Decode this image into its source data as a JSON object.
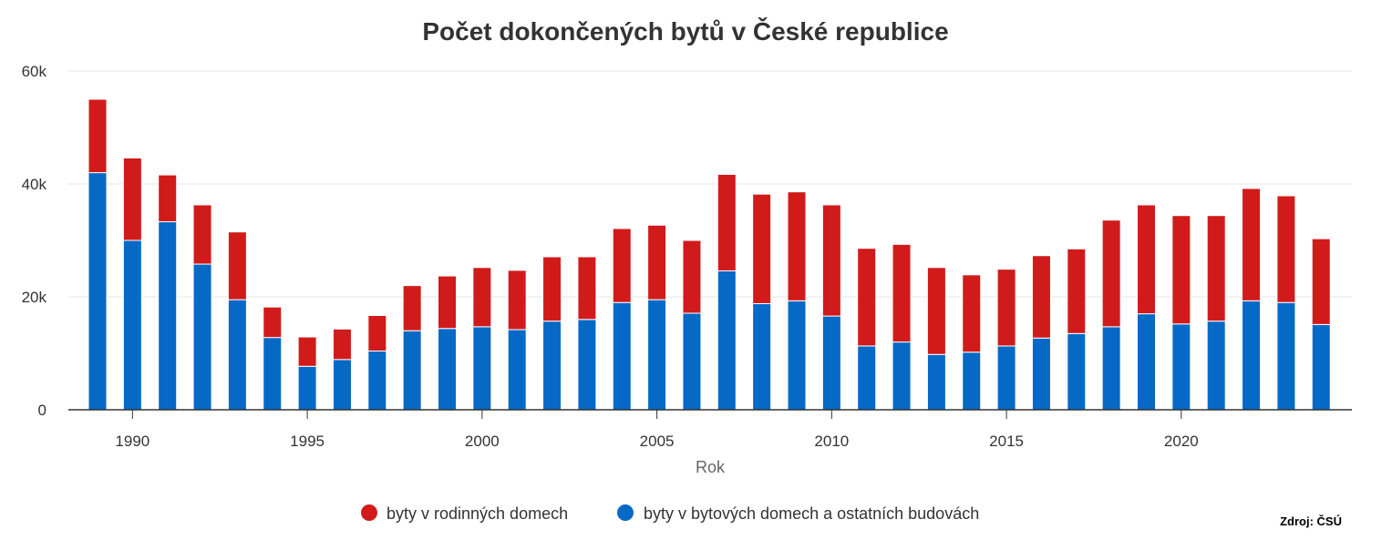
{
  "chart_data": {
    "type": "bar",
    "stacked": true,
    "title": "Počet dokončených bytů v České republice",
    "xlabel": "Rok",
    "ylabel": "",
    "ylim": [
      0,
      60000
    ],
    "yticks": [
      0,
      20000,
      40000,
      60000
    ],
    "ytick_labels": [
      "0",
      "20k",
      "40k",
      "60k"
    ],
    "xticks": [
      1990,
      1995,
      2000,
      2005,
      2010,
      2015,
      2020
    ],
    "xtick_labels": [
      "1990",
      "1995",
      "2000",
      "2005",
      "2010",
      "2015",
      "2020"
    ],
    "x": [
      1989,
      1990,
      1991,
      1992,
      1993,
      1994,
      1995,
      1996,
      1997,
      1998,
      1999,
      2000,
      2001,
      2002,
      2003,
      2004,
      2005,
      2006,
      2007,
      2008,
      2009,
      2010,
      2011,
      2012,
      2013,
      2014,
      2015,
      2016,
      2017,
      2018,
      2019,
      2020,
      2021,
      2022,
      2023,
      2024
    ],
    "series": [
      {
        "name": "byty v bytových domech a ostatních budovách",
        "color": "#0669c6",
        "values": [
          42000,
          30000,
          33300,
          25800,
          19500,
          12800,
          7700,
          8900,
          10400,
          14000,
          14400,
          14700,
          14200,
          15700,
          16000,
          19000,
          19500,
          17100,
          24600,
          18800,
          19300,
          16600,
          11300,
          12000,
          9800,
          10200,
          11300,
          12700,
          13500,
          14700,
          17000,
          15200,
          15700,
          19300,
          19000,
          15100
        ]
      },
      {
        "name": "byty v rodinných domech",
        "color": "#d11b1b",
        "values": [
          13000,
          14600,
          8300,
          10500,
          12000,
          5400,
          5200,
          5400,
          6300,
          8000,
          9300,
          10500,
          10500,
          11400,
          11100,
          13100,
          13200,
          12900,
          17100,
          19400,
          19300,
          19700,
          17300,
          17300,
          15400,
          13700,
          13600,
          14600,
          15000,
          18900,
          19300,
          19200,
          18700,
          19900,
          18900,
          15200
        ]
      }
    ],
    "legend": {
      "placement": "bottom-center",
      "items": [
        "byty v rodinných domech",
        "byty v bytových domech a ostatních budovách"
      ]
    },
    "credits": "Zdroj: ČSÚ",
    "grid": true
  }
}
